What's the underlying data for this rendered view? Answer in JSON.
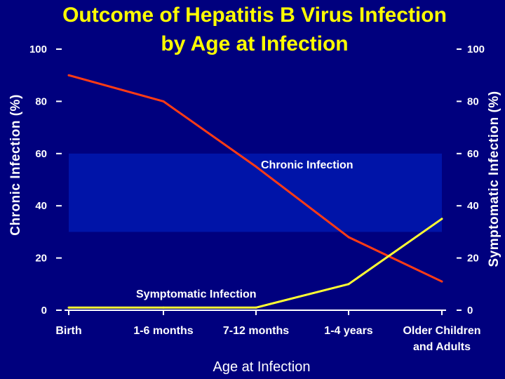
{
  "title": {
    "line1": "Outcome of Hepatitis B Virus Infection",
    "line2": "by Age at Infection"
  },
  "colors": {
    "background": "#00007e",
    "band": "#0014a8",
    "title": "#ffff00",
    "chronic_line": "#ff3b14",
    "symptomatic_line": "#ffff33",
    "axis": "#ffffff"
  },
  "chart_data": {
    "type": "line",
    "title": "Outcome of Hepatitis B Virus Infection by Age at Infection",
    "xlabel": "Age at Infection",
    "ylabel_left": "Chronic Infection (%)",
    "ylabel_right": "Symptomatic Infection (%)",
    "categories": [
      "Birth",
      "1-6 months",
      "7-12 months",
      "1-4 years",
      "Older Children and Adults"
    ],
    "category_labels": [
      [
        "Birth"
      ],
      [
        "1-6 months"
      ],
      [
        "7-12 months"
      ],
      [
        "1-4 years"
      ],
      [
        "Older Children",
        "and Adults"
      ]
    ],
    "ylim": [
      0,
      100
    ],
    "yticks": [
      "0",
      "20",
      "40",
      "60",
      "80",
      "100"
    ],
    "series": [
      {
        "name": "Chronic Infection",
        "axis": "left",
        "values": [
          90,
          80,
          55,
          28,
          11
        ]
      },
      {
        "name": "Symptomatic Infection",
        "axis": "right",
        "values": [
          1,
          1,
          1,
          10,
          35
        ]
      }
    ],
    "annotations": {
      "chronic": "Chronic Infection",
      "symptomatic": "Symptomatic Infection"
    },
    "grid": false
  }
}
